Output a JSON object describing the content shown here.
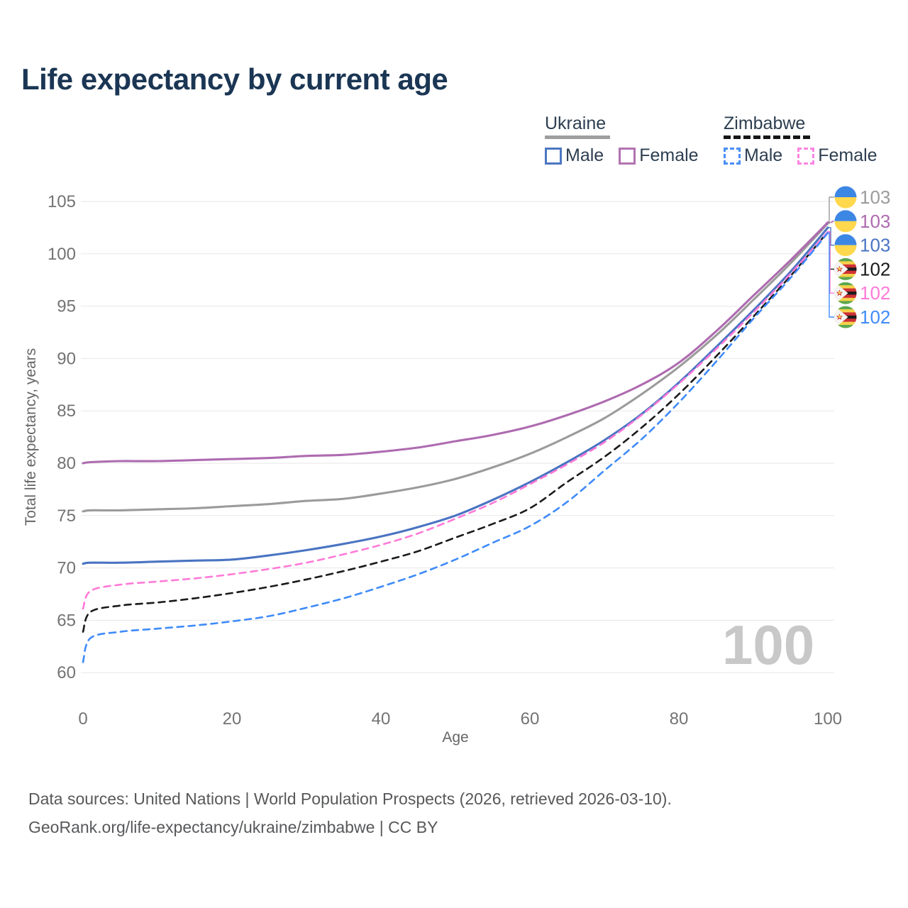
{
  "title": "Life expectancy by current age",
  "watermark": "100",
  "legend": {
    "groups": [
      {
        "country": "Ukraine",
        "line_style": "solid",
        "line_color": "#9b9b9b",
        "items": [
          {
            "label": "Male",
            "color": "#4c77c1",
            "dashed": false
          },
          {
            "label": "Female",
            "color": "#b273b0",
            "dashed": false
          }
        ]
      },
      {
        "country": "Zimbabwe",
        "line_style": "dashed",
        "line_color": "#1a1a1a",
        "items": [
          {
            "label": "Male",
            "color": "#4a8df5",
            "dashed": true
          },
          {
            "label": "Female",
            "color": "#fb85e1",
            "dashed": true
          }
        ]
      }
    ]
  },
  "chart_data": {
    "type": "line",
    "title": "Life expectancy by current age",
    "xlabel": "Age",
    "ylabel": "Total life expectancy, years",
    "xlim": [
      0,
      100
    ],
    "ylim": [
      60,
      105
    ],
    "x_ticks": [
      0,
      20,
      40,
      60,
      80,
      100
    ],
    "y_ticks": [
      60,
      65,
      70,
      75,
      80,
      85,
      90,
      95,
      100,
      105
    ],
    "grid": "horizontal",
    "legend_position": "top-right",
    "age_cursor": 100,
    "x": [
      0,
      1,
      5,
      10,
      15,
      20,
      25,
      30,
      35,
      40,
      45,
      50,
      55,
      60,
      65,
      70,
      75,
      80,
      85,
      90,
      95,
      100
    ],
    "series": [
      {
        "name": "Ukraine (both sexes)",
        "country": "Ukraine",
        "sex": "all",
        "color": "#9b9b9b",
        "dashed": false,
        "flag": "ukraine",
        "end_label": "103",
        "values": [
          75.4,
          75.5,
          75.5,
          75.6,
          75.7,
          75.9,
          76.1,
          76.4,
          76.6,
          77.1,
          77.7,
          78.5,
          79.6,
          80.9,
          82.5,
          84.3,
          86.6,
          89.2,
          92.2,
          95.6,
          99.1,
          102.9
        ]
      },
      {
        "name": "Ukraine Female",
        "country": "Ukraine",
        "sex": "female",
        "color": "#ae6bb0",
        "dashed": false,
        "flag": "ukraine",
        "end_label": "103",
        "values": [
          80.0,
          80.1,
          80.2,
          80.2,
          80.3,
          80.4,
          80.5,
          80.7,
          80.8,
          81.1,
          81.5,
          82.1,
          82.7,
          83.5,
          84.6,
          85.9,
          87.5,
          89.6,
          92.6,
          96.0,
          99.4,
          103.0
        ]
      },
      {
        "name": "Ukraine Male",
        "country": "Ukraine",
        "sex": "male",
        "color": "#4a74c2",
        "dashed": false,
        "flag": "ukraine",
        "end_label": "103",
        "values": [
          70.4,
          70.5,
          70.5,
          70.6,
          70.7,
          70.8,
          71.2,
          71.7,
          72.3,
          73.0,
          73.9,
          75.0,
          76.5,
          78.2,
          80.1,
          82.2,
          84.7,
          87.7,
          91.1,
          94.6,
          98.3,
          102.5
        ]
      },
      {
        "name": "Zimbabwe (both sexes)",
        "country": "Zimbabwe",
        "sex": "all",
        "color": "#1a1a1a",
        "dashed": true,
        "flag": "zimbabwe",
        "end_label": "102",
        "values": [
          63.9,
          65.8,
          66.4,
          66.7,
          67.1,
          67.6,
          68.2,
          68.9,
          69.7,
          70.6,
          71.6,
          72.9,
          74.2,
          75.7,
          78.2,
          80.6,
          83.4,
          86.6,
          90.2,
          94.0,
          97.9,
          102.1
        ]
      },
      {
        "name": "Zimbabwe Female",
        "country": "Zimbabwe",
        "sex": "female",
        "color": "#ff7ad8",
        "dashed": true,
        "flag": "zimbabwe",
        "end_label": "102",
        "values": [
          66.1,
          67.8,
          68.4,
          68.7,
          69.0,
          69.4,
          69.9,
          70.5,
          71.3,
          72.2,
          73.3,
          74.7,
          76.2,
          78.0,
          79.9,
          82.0,
          84.6,
          87.6,
          90.9,
          94.4,
          98.1,
          102.1
        ]
      },
      {
        "name": "Zimbabwe Male",
        "country": "Zimbabwe",
        "sex": "male",
        "color": "#3f8bf9",
        "dashed": true,
        "flag": "zimbabwe",
        "end_label": "102",
        "values": [
          61.0,
          63.3,
          63.9,
          64.2,
          64.5,
          64.9,
          65.4,
          66.2,
          67.1,
          68.2,
          69.4,
          70.8,
          72.4,
          74.0,
          76.3,
          79.3,
          82.3,
          85.8,
          89.7,
          93.8,
          97.7,
          102.0
        ]
      }
    ]
  },
  "footer": {
    "line1": "Data sources: United Nations | World Population Prospects (2026, retrieved 2026-03-10).",
    "line2": "GeoRank.org/life-expectancy/ukraine/zimbabwe | CC BY"
  }
}
